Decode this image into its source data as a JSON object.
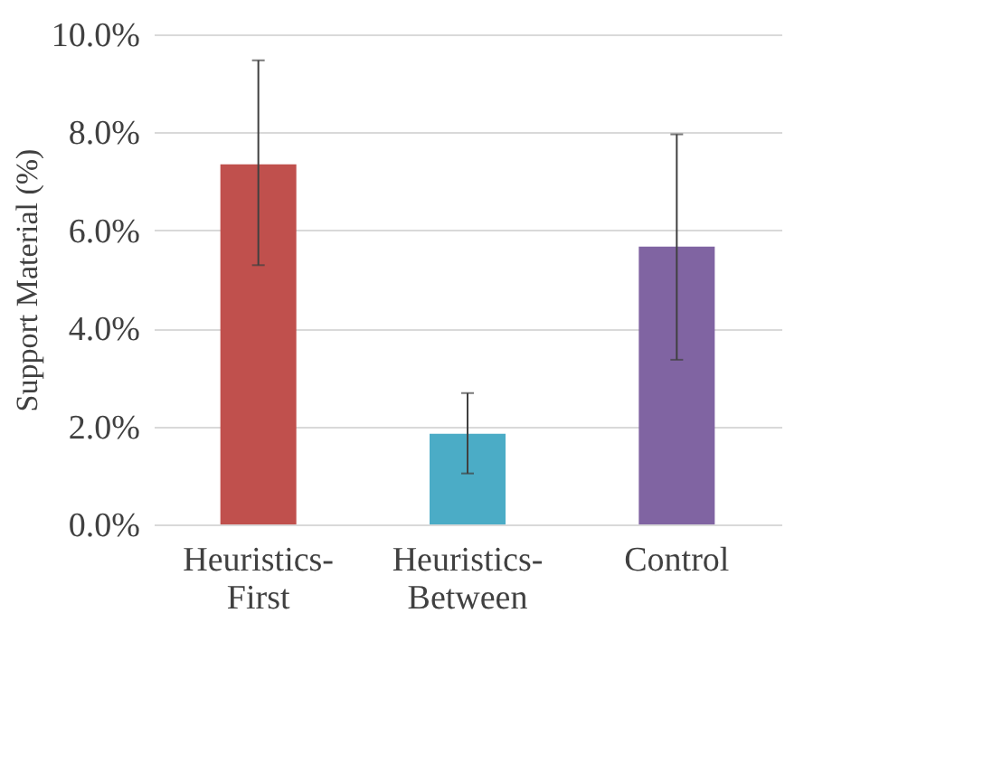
{
  "chart_data": {
    "type": "bar",
    "ylabel": "Support Material (%)",
    "categories": [
      "Heuristics-\nFirst",
      "Heuristics-\nBetween",
      "Control"
    ],
    "values": [
      7.35,
      1.85,
      5.67
    ],
    "colors": [
      "#c0504d",
      "#4bacc6",
      "#8064a2"
    ],
    "errors": [
      [
        5.29,
        9.47
      ],
      [
        1.04,
        2.68
      ],
      [
        3.36,
        7.96
      ]
    ],
    "ylim": [
      0,
      10
    ],
    "yticks": [
      {
        "value": 0,
        "label": "0.0%"
      },
      {
        "value": 2,
        "label": "2.0%"
      },
      {
        "value": 4,
        "label": "4.0%"
      },
      {
        "value": 6,
        "label": "6.0%"
      },
      {
        "value": 8,
        "label": "8.0%"
      },
      {
        "value": 10,
        "label": "10.0%"
      }
    ],
    "grid": "y",
    "legend": false
  }
}
